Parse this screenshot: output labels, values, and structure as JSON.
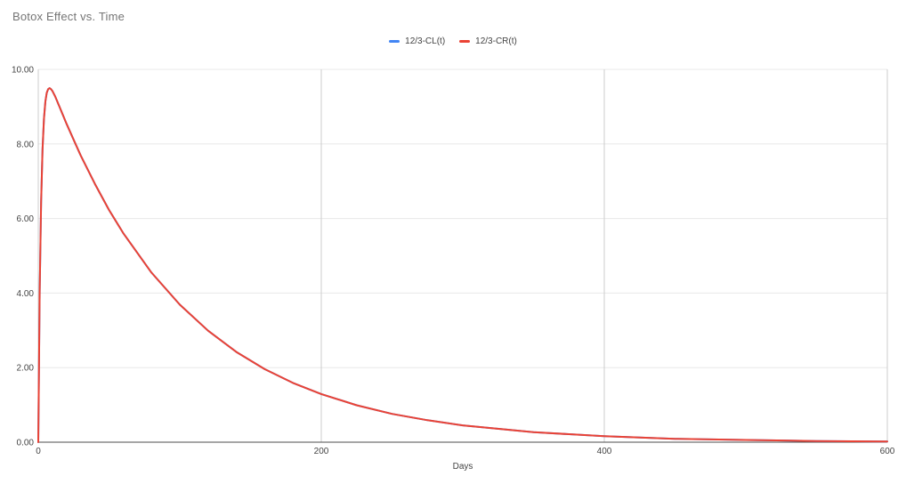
{
  "title": "Botox Effect vs. Time",
  "chart_data": {
    "type": "line",
    "title": "Botox Effect vs. Time",
    "xlabel": "Days",
    "ylabel": "",
    "xlim": [
      0,
      600
    ],
    "ylim": [
      0,
      10
    ],
    "grid": true,
    "legend_position": "top-center",
    "x_ticks": [
      {
        "value": 0,
        "label": "0"
      },
      {
        "value": 200,
        "label": "200"
      },
      {
        "value": 400,
        "label": "400"
      },
      {
        "value": 600,
        "label": "600"
      }
    ],
    "y_ticks": [
      {
        "value": 0,
        "label": "0.00"
      },
      {
        "value": 2,
        "label": "2.00"
      },
      {
        "value": 4,
        "label": "4.00"
      },
      {
        "value": 6,
        "label": "6.00"
      },
      {
        "value": 8,
        "label": "8.00"
      },
      {
        "value": 10,
        "label": "10.00"
      }
    ],
    "x": [
      0,
      1,
      2,
      3,
      4,
      5,
      6,
      7,
      8,
      9,
      10,
      12,
      15,
      20,
      25,
      30,
      40,
      50,
      60,
      80,
      100,
      120,
      140,
      160,
      180,
      200,
      225,
      250,
      275,
      300,
      350,
      400,
      450,
      500,
      550,
      600
    ],
    "series": [
      {
        "name": "12/3-CL(t)",
        "color": "#4285f4",
        "occluded_by_next_series": true,
        "values": [
          0,
          4.04,
          6.44,
          7.86,
          8.68,
          9.14,
          9.37,
          9.47,
          9.5,
          9.47,
          9.42,
          9.27,
          9.0,
          8.54,
          8.11,
          7.69,
          6.93,
          6.23,
          5.61,
          4.55,
          3.69,
          2.99,
          2.42,
          1.96,
          1.59,
          1.29,
          0.99,
          0.76,
          0.59,
          0.45,
          0.27,
          0.16,
          0.09,
          0.06,
          0.03,
          0.02
        ]
      },
      {
        "name": "12/3-CR(t)",
        "color": "#ea4335",
        "occluded_by_next_series": false,
        "values": [
          0,
          4.04,
          6.44,
          7.86,
          8.68,
          9.14,
          9.37,
          9.47,
          9.5,
          9.47,
          9.42,
          9.27,
          9.0,
          8.54,
          8.11,
          7.69,
          6.93,
          6.23,
          5.61,
          4.55,
          3.69,
          2.99,
          2.42,
          1.96,
          1.59,
          1.29,
          0.99,
          0.76,
          0.59,
          0.45,
          0.27,
          0.16,
          0.09,
          0.06,
          0.03,
          0.02
        ]
      }
    ]
  }
}
